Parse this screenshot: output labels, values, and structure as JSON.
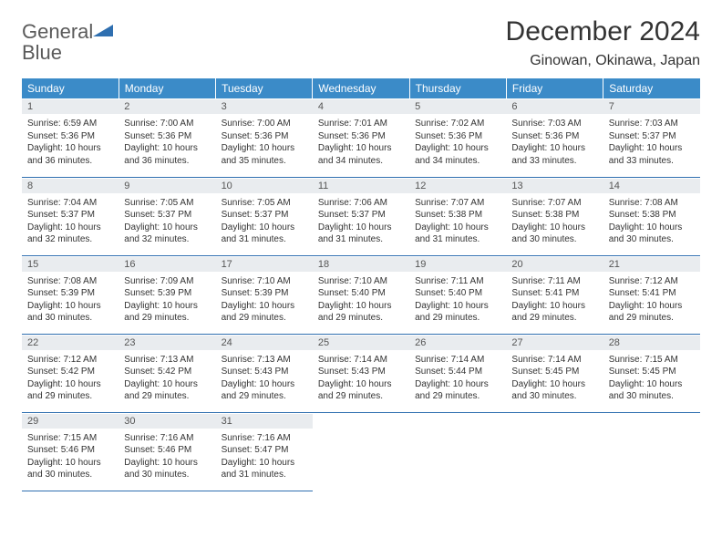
{
  "logo": {
    "text1": "General",
    "text2": "Blue",
    "text_color": "#5a5a5a",
    "accent_color": "#2f6fb0",
    "triangle_color": "#2f6fb0"
  },
  "header": {
    "title": "December 2024",
    "subtitle": "Ginowan, Okinawa, Japan",
    "title_color": "#333333",
    "title_fontsize": 30,
    "subtitle_fontsize": 16
  },
  "calendar": {
    "header_bg": "#3b8bc8",
    "header_text_color": "#ffffff",
    "daynum_bg": "#e9ecef",
    "row_border_color": "#2f6fb0",
    "body_text_color": "#333333",
    "header_fontsize": 12,
    "daynum_fontsize": 11,
    "body_fontsize": 10,
    "columns": [
      "Sunday",
      "Monday",
      "Tuesday",
      "Wednesday",
      "Thursday",
      "Friday",
      "Saturday"
    ],
    "weeks": [
      [
        {
          "day": "1",
          "sunrise": "Sunrise: 6:59 AM",
          "sunset": "Sunset: 5:36 PM",
          "daylight": "Daylight: 10 hours and 36 minutes."
        },
        {
          "day": "2",
          "sunrise": "Sunrise: 7:00 AM",
          "sunset": "Sunset: 5:36 PM",
          "daylight": "Daylight: 10 hours and 36 minutes."
        },
        {
          "day": "3",
          "sunrise": "Sunrise: 7:00 AM",
          "sunset": "Sunset: 5:36 PM",
          "daylight": "Daylight: 10 hours and 35 minutes."
        },
        {
          "day": "4",
          "sunrise": "Sunrise: 7:01 AM",
          "sunset": "Sunset: 5:36 PM",
          "daylight": "Daylight: 10 hours and 34 minutes."
        },
        {
          "day": "5",
          "sunrise": "Sunrise: 7:02 AM",
          "sunset": "Sunset: 5:36 PM",
          "daylight": "Daylight: 10 hours and 34 minutes."
        },
        {
          "day": "6",
          "sunrise": "Sunrise: 7:03 AM",
          "sunset": "Sunset: 5:36 PM",
          "daylight": "Daylight: 10 hours and 33 minutes."
        },
        {
          "day": "7",
          "sunrise": "Sunrise: 7:03 AM",
          "sunset": "Sunset: 5:37 PM",
          "daylight": "Daylight: 10 hours and 33 minutes."
        }
      ],
      [
        {
          "day": "8",
          "sunrise": "Sunrise: 7:04 AM",
          "sunset": "Sunset: 5:37 PM",
          "daylight": "Daylight: 10 hours and 32 minutes."
        },
        {
          "day": "9",
          "sunrise": "Sunrise: 7:05 AM",
          "sunset": "Sunset: 5:37 PM",
          "daylight": "Daylight: 10 hours and 32 minutes."
        },
        {
          "day": "10",
          "sunrise": "Sunrise: 7:05 AM",
          "sunset": "Sunset: 5:37 PM",
          "daylight": "Daylight: 10 hours and 31 minutes."
        },
        {
          "day": "11",
          "sunrise": "Sunrise: 7:06 AM",
          "sunset": "Sunset: 5:37 PM",
          "daylight": "Daylight: 10 hours and 31 minutes."
        },
        {
          "day": "12",
          "sunrise": "Sunrise: 7:07 AM",
          "sunset": "Sunset: 5:38 PM",
          "daylight": "Daylight: 10 hours and 31 minutes."
        },
        {
          "day": "13",
          "sunrise": "Sunrise: 7:07 AM",
          "sunset": "Sunset: 5:38 PM",
          "daylight": "Daylight: 10 hours and 30 minutes."
        },
        {
          "day": "14",
          "sunrise": "Sunrise: 7:08 AM",
          "sunset": "Sunset: 5:38 PM",
          "daylight": "Daylight: 10 hours and 30 minutes."
        }
      ],
      [
        {
          "day": "15",
          "sunrise": "Sunrise: 7:08 AM",
          "sunset": "Sunset: 5:39 PM",
          "daylight": "Daylight: 10 hours and 30 minutes."
        },
        {
          "day": "16",
          "sunrise": "Sunrise: 7:09 AM",
          "sunset": "Sunset: 5:39 PM",
          "daylight": "Daylight: 10 hours and 29 minutes."
        },
        {
          "day": "17",
          "sunrise": "Sunrise: 7:10 AM",
          "sunset": "Sunset: 5:39 PM",
          "daylight": "Daylight: 10 hours and 29 minutes."
        },
        {
          "day": "18",
          "sunrise": "Sunrise: 7:10 AM",
          "sunset": "Sunset: 5:40 PM",
          "daylight": "Daylight: 10 hours and 29 minutes."
        },
        {
          "day": "19",
          "sunrise": "Sunrise: 7:11 AM",
          "sunset": "Sunset: 5:40 PM",
          "daylight": "Daylight: 10 hours and 29 minutes."
        },
        {
          "day": "20",
          "sunrise": "Sunrise: 7:11 AM",
          "sunset": "Sunset: 5:41 PM",
          "daylight": "Daylight: 10 hours and 29 minutes."
        },
        {
          "day": "21",
          "sunrise": "Sunrise: 7:12 AM",
          "sunset": "Sunset: 5:41 PM",
          "daylight": "Daylight: 10 hours and 29 minutes."
        }
      ],
      [
        {
          "day": "22",
          "sunrise": "Sunrise: 7:12 AM",
          "sunset": "Sunset: 5:42 PM",
          "daylight": "Daylight: 10 hours and 29 minutes."
        },
        {
          "day": "23",
          "sunrise": "Sunrise: 7:13 AM",
          "sunset": "Sunset: 5:42 PM",
          "daylight": "Daylight: 10 hours and 29 minutes."
        },
        {
          "day": "24",
          "sunrise": "Sunrise: 7:13 AM",
          "sunset": "Sunset: 5:43 PM",
          "daylight": "Daylight: 10 hours and 29 minutes."
        },
        {
          "day": "25",
          "sunrise": "Sunrise: 7:14 AM",
          "sunset": "Sunset: 5:43 PM",
          "daylight": "Daylight: 10 hours and 29 minutes."
        },
        {
          "day": "26",
          "sunrise": "Sunrise: 7:14 AM",
          "sunset": "Sunset: 5:44 PM",
          "daylight": "Daylight: 10 hours and 29 minutes."
        },
        {
          "day": "27",
          "sunrise": "Sunrise: 7:14 AM",
          "sunset": "Sunset: 5:45 PM",
          "daylight": "Daylight: 10 hours and 30 minutes."
        },
        {
          "day": "28",
          "sunrise": "Sunrise: 7:15 AM",
          "sunset": "Sunset: 5:45 PM",
          "daylight": "Daylight: 10 hours and 30 minutes."
        }
      ],
      [
        {
          "day": "29",
          "sunrise": "Sunrise: 7:15 AM",
          "sunset": "Sunset: 5:46 PM",
          "daylight": "Daylight: 10 hours and 30 minutes."
        },
        {
          "day": "30",
          "sunrise": "Sunrise: 7:16 AM",
          "sunset": "Sunset: 5:46 PM",
          "daylight": "Daylight: 10 hours and 30 minutes."
        },
        {
          "day": "31",
          "sunrise": "Sunrise: 7:16 AM",
          "sunset": "Sunset: 5:47 PM",
          "daylight": "Daylight: 10 hours and 31 minutes."
        },
        null,
        null,
        null,
        null
      ]
    ]
  }
}
